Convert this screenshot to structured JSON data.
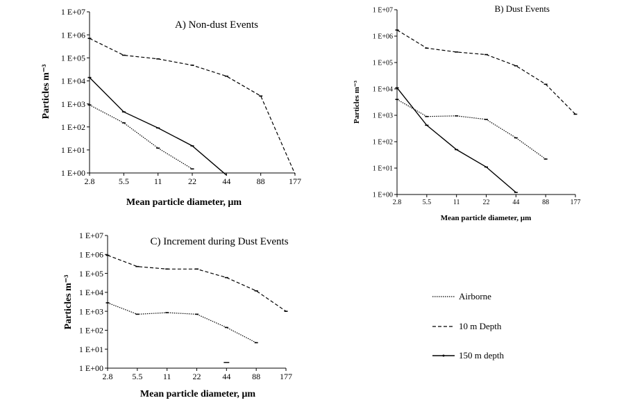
{
  "legend": {
    "items": [
      {
        "label": "Airborne",
        "style": "dotted"
      },
      {
        "label": "10 m Depth",
        "style": "dashed"
      },
      {
        "label": "150 m depth",
        "style": "solid"
      }
    ]
  },
  "chart_data": [
    {
      "type": "line",
      "title": "A) Non-dust Events",
      "xlabel": "Mean particle diameter, µm",
      "ylabel": "Particles m⁻³",
      "y_scale": "log",
      "x_categories": [
        "2.8",
        "5.5",
        "11",
        "22",
        "44",
        "88",
        "177"
      ],
      "y_tick_labels": [
        "1 E+00",
        "1 E+01",
        "1 E+02",
        "1 E+03",
        "1 E+04",
        "1 E+05",
        "1 E+06",
        "1 E+07"
      ],
      "ylim": [
        1,
        10000000
      ],
      "series": [
        {
          "name": "Airborne",
          "style": "dotted",
          "values": [
            900,
            150,
            12,
            1.5,
            null,
            null,
            null
          ]
        },
        {
          "name": "10 m Depth",
          "style": "dashed",
          "values": [
            700000,
            130000,
            90000,
            48000,
            16000,
            2200,
            0.9
          ]
        },
        {
          "name": "150 m depth",
          "style": "solid",
          "values": [
            14000,
            450,
            90,
            15,
            0.8,
            null,
            null
          ]
        }
      ]
    },
    {
      "type": "line",
      "title": "B) Dust Events",
      "xlabel": "Mean particle diameter, µm",
      "ylabel": "Particles m⁻³",
      "y_scale": "log",
      "x_categories": [
        "2.8",
        "5.5",
        "11",
        "22",
        "44",
        "88",
        "177"
      ],
      "y_tick_labels": [
        "1 E+00",
        "1 E+01",
        "1 E+02",
        "1 E+03",
        "1 E+04",
        "1 E+05",
        "1 E+06",
        "1 E+07"
      ],
      "ylim": [
        1,
        10000000
      ],
      "series": [
        {
          "name": "Airborne",
          "style": "dotted",
          "values": [
            4000,
            900,
            950,
            700,
            140,
            22,
            null
          ]
        },
        {
          "name": "10 m Depth",
          "style": "dashed",
          "values": [
            1700000,
            350000,
            250000,
            200000,
            75000,
            15000,
            1100
          ]
        },
        {
          "name": "150 m depth",
          "style": "solid",
          "values": [
            11000,
            420,
            50,
            11,
            1.2,
            null,
            null
          ]
        }
      ]
    },
    {
      "type": "line",
      "title": "C) Increment  during Dust Events",
      "xlabel": "Mean particle diameter, µm",
      "ylabel": "Particles m⁻³",
      "y_scale": "log",
      "x_categories": [
        "2.8",
        "5.5",
        "11",
        "22",
        "44",
        "88",
        "177"
      ],
      "y_tick_labels": [
        "1 E+00",
        "1 E+01",
        "1 E+02",
        "1 E+03",
        "1 E+04",
        "1 E+05",
        "1 E+06",
        "1 E+07"
      ],
      "ylim": [
        1,
        10000000
      ],
      "series": [
        {
          "name": "Airborne",
          "style": "dotted",
          "values": [
            2800,
            700,
            850,
            700,
            140,
            22,
            null
          ]
        },
        {
          "name": "10 m Depth",
          "style": "dashed",
          "values": [
            900000,
            230000,
            170000,
            170000,
            60000,
            12000,
            1000
          ]
        },
        {
          "name": "150 m depth",
          "style": "solid",
          "values": [
            null,
            null,
            null,
            null,
            2,
            null,
            null
          ]
        }
      ]
    }
  ]
}
